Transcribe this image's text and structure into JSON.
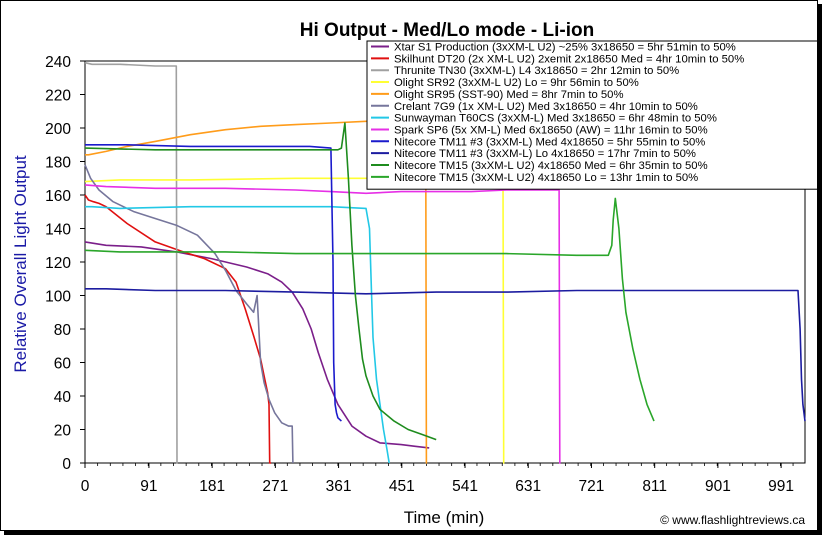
{
  "chart_data": {
    "type": "line",
    "title": "Hi Output - Med/Lo mode - Li-ion",
    "xlabel": "Time (min)",
    "ylabel": "Relative Overall Light Output",
    "xlim": [
      0,
      1025
    ],
    "ylim": [
      0,
      240
    ],
    "xticks": [
      0,
      91,
      181,
      271,
      361,
      451,
      541,
      631,
      721,
      811,
      901,
      991
    ],
    "yticks": [
      0,
      20,
      40,
      60,
      80,
      100,
      120,
      140,
      160,
      180,
      200,
      220,
      240
    ],
    "grid": false,
    "legend_position": "top-right",
    "credit": "© www.flashlightreviews.ca",
    "series": [
      {
        "name": "Xtar S1 Production (3xXM-L U2) ~25% 3x18650 = 5hr 51min to 50%",
        "color": "#7b1f8a",
        "x": [
          0,
          30,
          80,
          130,
          180,
          230,
          260,
          280,
          295,
          310,
          322,
          332,
          345,
          360,
          380,
          400,
          420,
          450,
          470,
          490
        ],
        "y": [
          132,
          130,
          129,
          126,
          122,
          117,
          113,
          108,
          102,
          92,
          80,
          66,
          50,
          35,
          22,
          16,
          12,
          11,
          10,
          9
        ]
      },
      {
        "name": "Skilhunt DT20 (2x XM-L U2) 2xemit 2x18650 Med = 4hr 10min to 50%",
        "color": "#e01010",
        "x": [
          0,
          5,
          12,
          20,
          30,
          60,
          100,
          140,
          170,
          200,
          215,
          228,
          240,
          250,
          256,
          260,
          262,
          263,
          265
        ],
        "y": [
          160,
          157,
          156,
          155,
          153,
          143,
          132,
          126,
          122,
          116,
          108,
          92,
          76,
          62,
          50,
          42,
          35,
          0,
          0
        ]
      },
      {
        "name": "Thrunite TN30 (3xXM-L) L4 3x18650 = 2hr 12min to 50%",
        "color": "#a0a0a0",
        "x": [
          0,
          10,
          50,
          100,
          130,
          131,
          132
        ],
        "y": [
          239,
          238,
          238,
          237,
          237,
          0,
          0
        ]
      },
      {
        "name": "Olight SR92 (3xXM-L U2) Lo = 9hr 56min to 50%",
        "color": "#ffff33",
        "x": [
          0,
          50,
          150,
          300,
          450,
          550,
          595,
          596,
          597
        ],
        "y": [
          168,
          169,
          169,
          170,
          170,
          171,
          171,
          0,
          0
        ]
      },
      {
        "name": "Olight SR95 (SST-90) Med = 8hr 7min to 50%",
        "color": "#ff9c1a",
        "x": [
          0,
          5,
          30,
          60,
          100,
          150,
          200,
          250,
          300,
          350,
          400,
          440,
          485,
          486,
          487
        ],
        "y": [
          184,
          184,
          186,
          189,
          192,
          196,
          199,
          201,
          202,
          203,
          204,
          205,
          205,
          0,
          0
        ]
      },
      {
        "name": "Crelant 7G9 (1x XM-L U2) Med 3x18650 = 4hr 10min to 50%",
        "color": "#76769c",
        "x": [
          0,
          8,
          20,
          40,
          70,
          100,
          130,
          160,
          185,
          200,
          215,
          230,
          240,
          245,
          250,
          255,
          262,
          270,
          280,
          290,
          295,
          296
        ],
        "y": [
          178,
          170,
          163,
          156,
          150,
          146,
          142,
          136,
          125,
          115,
          103,
          95,
          90,
          100,
          60,
          48,
          38,
          30,
          24,
          22,
          22,
          0
        ]
      },
      {
        "name": "Sunwayman T60CS (3xXM-L) Med 3x18650 = 6hr 48min to 50%",
        "color": "#22c8e6",
        "x": [
          0,
          10,
          50,
          150,
          250,
          350,
          400,
          405,
          408,
          410,
          415,
          420,
          425,
          430,
          433
        ],
        "y": [
          153,
          153,
          152,
          153,
          153,
          153,
          152,
          140,
          100,
          75,
          50,
          35,
          20,
          8,
          0
        ]
      },
      {
        "name": "Spark SP6 (5x XM-L) Med 6x18650 (AW) = 11hr 16min to 50%",
        "color": "#e62fe6",
        "x": [
          0,
          30,
          100,
          200,
          300,
          350,
          400,
          450,
          500,
          550,
          600,
          650,
          675,
          676,
          677
        ],
        "y": [
          166,
          165,
          164,
          164,
          163,
          162,
          161,
          162,
          162,
          162,
          163,
          163,
          163,
          0,
          0
        ]
      },
      {
        "name": "Nitecore TM11 #3 (3xXM-L) Med 4x18650 = 5hr 55min to 50%",
        "color": "#1a1acc",
        "x": [
          0,
          60,
          150,
          250,
          320,
          350,
          353,
          354,
          356,
          358,
          360,
          365
        ],
        "y": [
          190,
          190,
          189,
          189,
          189,
          188,
          120,
          60,
          35,
          30,
          27,
          25
        ]
      },
      {
        "name": "Nitecore TM11 #3 (3xXM-L) Lo 4x18650 = 17hr 7min to 50%",
        "color": "#1c1ca0",
        "x": [
          0,
          30,
          100,
          200,
          300,
          400,
          500,
          600,
          700,
          800,
          900,
          1000,
          1015,
          1018,
          1020,
          1022,
          1025
        ],
        "y": [
          104,
          104,
          103,
          103,
          102,
          101,
          102,
          102,
          103,
          103,
          103,
          103,
          103,
          80,
          50,
          35,
          25
        ]
      },
      {
        "name": "Nitecore TM15 (3xXM-L U2) 4x18650 Med = 6hr 35min to 50%",
        "color": "#1e8c1e",
        "x": [
          0,
          100,
          200,
          300,
          350,
          360,
          365,
          370,
          375,
          380,
          385,
          390,
          395,
          400,
          410,
          420,
          440,
          460,
          480,
          500
        ],
        "y": [
          188,
          187,
          187,
          187,
          187,
          187,
          188,
          203,
          170,
          130,
          100,
          80,
          62,
          52,
          40,
          32,
          25,
          20,
          17,
          14
        ]
      },
      {
        "name": "Nitecore TM15 (3xXM-L U2) 4x18650 Lo = 13hr 1min to 50%",
        "color": "#2aa62a",
        "x": [
          0,
          50,
          100,
          200,
          300,
          400,
          500,
          600,
          700,
          745,
          750,
          752,
          755,
          760,
          765,
          770,
          780,
          790,
          800,
          810
        ],
        "y": [
          127,
          126,
          126,
          126,
          125,
          125,
          125,
          125,
          124,
          124,
          130,
          145,
          158,
          140,
          110,
          90,
          68,
          50,
          35,
          25
        ]
      }
    ]
  }
}
